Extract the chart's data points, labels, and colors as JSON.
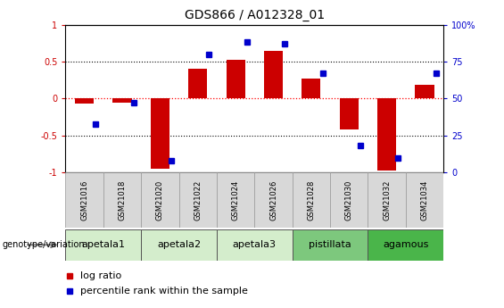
{
  "title": "GDS866 / A012328_01",
  "samples": [
    "GSM21016",
    "GSM21018",
    "GSM21020",
    "GSM21022",
    "GSM21024",
    "GSM21026",
    "GSM21028",
    "GSM21030",
    "GSM21032",
    "GSM21034"
  ],
  "log_ratio": [
    -0.07,
    -0.05,
    -0.95,
    0.4,
    0.53,
    0.65,
    0.27,
    -0.42,
    -0.97,
    0.19
  ],
  "percentile_rank": [
    33,
    47,
    8,
    80,
    88,
    87,
    67,
    18,
    10,
    67
  ],
  "bar_color": "#cc0000",
  "dot_color": "#0000cc",
  "bar_width": 0.5,
  "ylim": [
    -1,
    1
  ],
  "y2lim": [
    0,
    100
  ],
  "y2ticks": [
    0,
    25,
    50,
    75,
    100
  ],
  "yticks": [
    -1,
    -0.5,
    0,
    0.5,
    1
  ],
  "legend_items": [
    {
      "label": "log ratio",
      "color": "#cc0000"
    },
    {
      "label": "percentile rank within the sample",
      "color": "#0000cc"
    }
  ],
  "genotype_label": "genotype/variation",
  "group_spans": [
    [
      0,
      2,
      "apetala1",
      "#d4edcc"
    ],
    [
      2,
      4,
      "apetala2",
      "#d4edcc"
    ],
    [
      4,
      6,
      "apetala3",
      "#d4edcc"
    ],
    [
      6,
      8,
      "pistillata",
      "#7dc87d"
    ],
    [
      8,
      10,
      "agamous",
      "#4ab54a"
    ]
  ],
  "sample_box_color": "#d8d8d8",
  "sample_box_edge": "#999999"
}
